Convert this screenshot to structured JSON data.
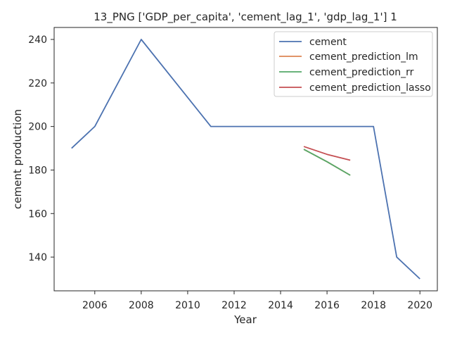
{
  "chart_data": {
    "type": "line",
    "title": "13_PNG ['GDP_per_capita', 'cement_lag_1', 'gdp_lag_1'] 1",
    "xlabel": "Year",
    "ylabel": "cement production",
    "xlim": [
      2004.25,
      2020.75
    ],
    "ylim": [
      124.5,
      245.5
    ],
    "xticks": [
      2006,
      2008,
      2010,
      2012,
      2014,
      2016,
      2018,
      2020
    ],
    "xtick_labels": [
      "2006",
      "2008",
      "2010",
      "2012",
      "2014",
      "2016",
      "2018",
      "2020"
    ],
    "yticks": [
      140,
      160,
      180,
      200,
      220,
      240
    ],
    "ytick_labels": [
      "140",
      "160",
      "180",
      "200",
      "220",
      "240"
    ],
    "grid": false,
    "legend_position": "top-right",
    "series": [
      {
        "name": "cement",
        "color": "#4c72b0",
        "x": [
          2005,
          2006,
          2008,
          2011,
          2012,
          2013,
          2014,
          2015,
          2016,
          2017,
          2018,
          2019,
          2020
        ],
        "y": [
          190,
          200,
          240,
          200,
          200,
          200,
          200,
          200,
          200,
          200,
          200,
          140,
          130
        ]
      },
      {
        "name": "cement_prediction_lm",
        "color": "#dd8452",
        "x": [
          2015,
          2016,
          2017
        ],
        "y": [
          189.5,
          183.8,
          177.6
        ]
      },
      {
        "name": "cement_prediction_rr",
        "color": "#55a868",
        "x": [
          2015,
          2016,
          2017
        ],
        "y": [
          189.5,
          183.8,
          177.6
        ]
      },
      {
        "name": "cement_prediction_lasso",
        "color": "#c44e52",
        "x": [
          2015,
          2016,
          2017
        ],
        "y": [
          190.8,
          187.2,
          184.5
        ]
      }
    ]
  }
}
